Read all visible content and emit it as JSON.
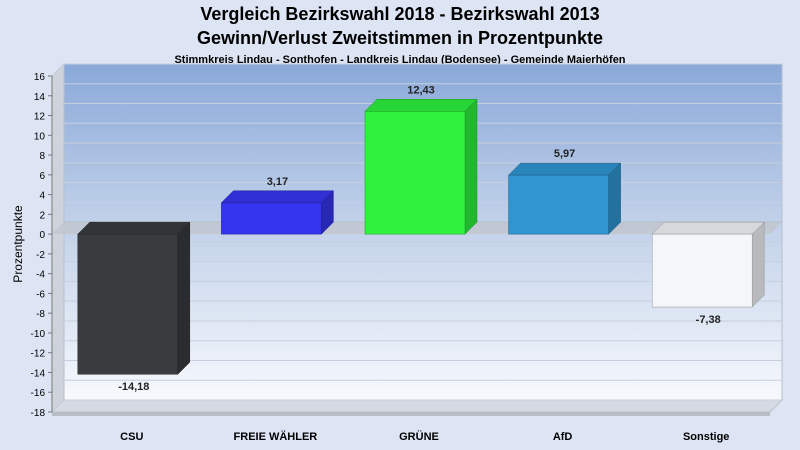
{
  "title": "Vergleich Bezirkswahl 2018 - Bezirkswahl 2013",
  "subtitle": "Gewinn/Verlust Zweitstimmen in Prozentpunkte",
  "subsubtitle": "Stimmkreis Lindau - Sonthofen - Landkreis Lindau (Bodensee) - Gemeinde Maierhöfen",
  "chart_data": {
    "type": "bar",
    "title": "Vergleich Bezirkswahl 2018 - Bezirkswahl 2013",
    "subtitle": "Gewinn/Verlust Zweitstimmen in Prozentpunkte",
    "ylabel": "Prozentpunkte",
    "xlabel": "",
    "ylim": [
      -18,
      16
    ],
    "yticks": [
      16,
      14,
      12,
      10,
      8,
      6,
      4,
      2,
      0,
      -2,
      -4,
      -6,
      -8,
      -10,
      -12,
      -14,
      -16,
      -18
    ],
    "categories": [
      "CSU",
      "FREIE WÄHLER",
      "GRÜNE",
      "AfD",
      "Sonstige"
    ],
    "values": [
      -14.18,
      3.17,
      12.43,
      5.97,
      -7.38
    ],
    "value_labels": [
      "-14,18",
      "3,17",
      "12,43",
      "5,97",
      "-7,38"
    ],
    "colors": [
      "#393b3e",
      "#3535f0",
      "#2ef23e",
      "#2f96d2",
      "#f4f6fa"
    ],
    "grid": true,
    "legend": "none"
  }
}
